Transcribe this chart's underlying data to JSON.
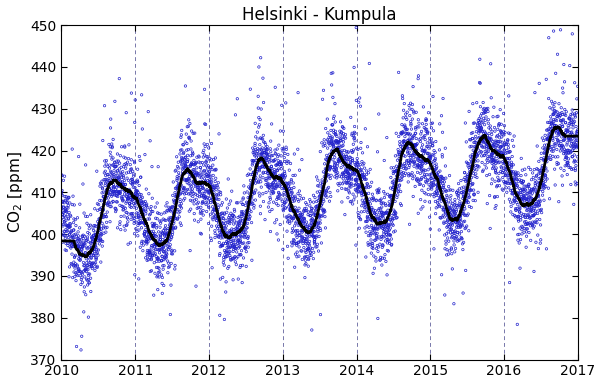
{
  "title": "Helsinki - Kumpula",
  "ylabel": "CO$_2$ [ppm]",
  "xlim": [
    2010.0,
    2017.0
  ],
  "ylim": [
    370,
    450
  ],
  "yticks": [
    370,
    380,
    390,
    400,
    410,
    420,
    430,
    440,
    450
  ],
  "xticks": [
    2010,
    2011,
    2012,
    2013,
    2014,
    2015,
    2016,
    2017
  ],
  "scatter_color": "#2222cc",
  "line_color": "#000000",
  "vline_color": "#7777aa",
  "background_color": "#ffffff",
  "scatter_marker": "o",
  "scatter_size": 3,
  "scatter_linewidth": 0.5,
  "line_linewidth": 2.0,
  "seed": 42,
  "n_points": 5000
}
